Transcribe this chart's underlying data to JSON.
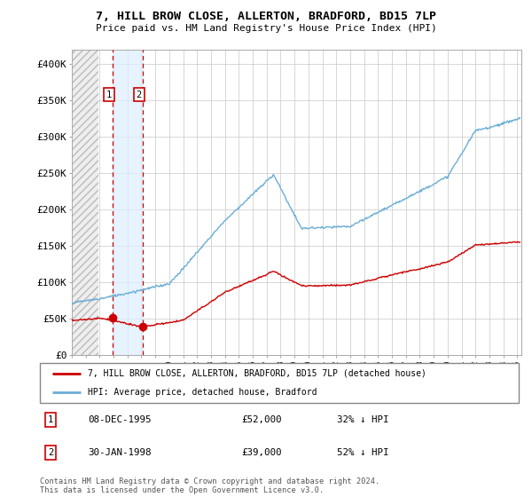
{
  "title_line1": "7, HILL BROW CLOSE, ALLERTON, BRADFORD, BD15 7LP",
  "title_line2": "Price paid vs. HM Land Registry's House Price Index (HPI)",
  "ylim": [
    0,
    420000
  ],
  "yticks": [
    0,
    50000,
    100000,
    150000,
    200000,
    250000,
    300000,
    350000,
    400000
  ],
  "ytick_labels": [
    "£0",
    "£50K",
    "£100K",
    "£150K",
    "£200K",
    "£250K",
    "£300K",
    "£350K",
    "£400K"
  ],
  "legend_label_red": "7, HILL BROW CLOSE, ALLERTON, BRADFORD, BD15 7LP (detached house)",
  "legend_label_blue": "HPI: Average price, detached house, Bradford",
  "footer": "Contains HM Land Registry data © Crown copyright and database right 2024.\nThis data is licensed under the Open Government Licence v3.0.",
  "sale1_date_num": 1995.93,
  "sale1_price": 52000,
  "sale1_label": "1",
  "sale1_pct": "32% ↓ HPI",
  "sale1_date_str": "08-DEC-1995",
  "sale2_date_num": 1998.08,
  "sale2_price": 39000,
  "sale2_label": "2",
  "sale2_pct": "52% ↓ HPI",
  "sale2_date_str": "30-JAN-1998",
  "hpi_color": "#6baed6",
  "price_color": "#cc0000",
  "background_color": "#ffffff",
  "grid_color": "#c8c8c8",
  "xlim_start": 1993.0,
  "xlim_end": 2025.3,
  "hatch_end": 1994.9,
  "shade_color": "#ddeeff"
}
